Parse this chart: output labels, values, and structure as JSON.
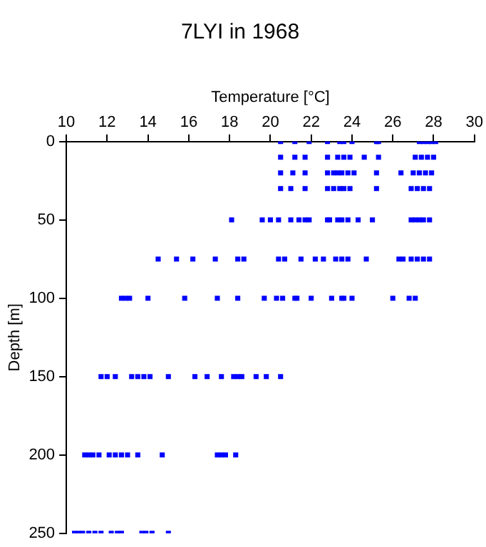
{
  "chart_data": {
    "type": "scatter",
    "title": "7LYI in 1968",
    "xlabel": "Temperature [°C]",
    "ylabel": "Depth [m]",
    "xlim": [
      10,
      30
    ],
    "xticks": [
      10,
      12,
      14,
      16,
      18,
      20,
      22,
      24,
      26,
      28,
      30
    ],
    "ylim": [
      250,
      0
    ],
    "yticks": [
      0,
      50,
      100,
      150,
      200,
      250
    ],
    "grid": false,
    "legend": false,
    "marker": "square",
    "series": [
      {
        "color": "#0000ff",
        "x": [
          20.5,
          21.2,
          21.9,
          22.8,
          23.4,
          23.6,
          24.0,
          25.2,
          25.3,
          27.3,
          27.5,
          27.7,
          27.9,
          28.1,
          20.5,
          21.2,
          21.7,
          22.8,
          23.3,
          23.6,
          23.9,
          24.6,
          25.3,
          27.1,
          27.4,
          27.7,
          28.0,
          20.5,
          21.1,
          21.7,
          22.8,
          23.1,
          23.3,
          23.5,
          23.8,
          24.1,
          25.2,
          26.4,
          27.0,
          27.3,
          27.6,
          27.9,
          20.5,
          21.0,
          21.7,
          22.8,
          23.1,
          23.4,
          23.6,
          23.9,
          25.2,
          26.9,
          27.2,
          27.5,
          27.8,
          18.1,
          19.6,
          20.0,
          20.4,
          21.0,
          21.4,
          21.7,
          21.9,
          22.8,
          22.9,
          23.3,
          23.5,
          23.8,
          24.3,
          25.0,
          26.9,
          27.1,
          27.3,
          27.5,
          27.8,
          14.5,
          15.4,
          16.2,
          17.3,
          18.4,
          18.7,
          20.4,
          20.7,
          21.5,
          22.2,
          22.6,
          23.2,
          23.5,
          23.8,
          24.7,
          26.3,
          26.5,
          26.9,
          27.2,
          27.5,
          27.8,
          12.7,
          12.9,
          13.1,
          14.0,
          15.8,
          17.4,
          18.4,
          19.7,
          20.3,
          20.6,
          21.2,
          21.3,
          22.0,
          23.0,
          23.5,
          23.6,
          24.0,
          26.0,
          26.8,
          27.1,
          11.7,
          12.0,
          12.4,
          13.2,
          13.5,
          13.8,
          14.1,
          15.0,
          16.3,
          16.9,
          17.6,
          18.2,
          18.4,
          18.6,
          19.3,
          19.8,
          20.5,
          10.9,
          11.1,
          11.3,
          11.6,
          12.1,
          12.4,
          12.7,
          13.0,
          13.5,
          14.7,
          17.4,
          17.6,
          17.8,
          18.3,
          10.4,
          10.6,
          10.8,
          11.1,
          11.4,
          11.7,
          12.2,
          12.5,
          12.7,
          13.7,
          13.9,
          14.2,
          15.0
        ],
        "values": [
          0,
          0,
          0,
          0,
          0,
          0,
          0,
          0,
          0,
          0,
          0,
          0,
          0,
          0,
          10,
          10,
          10,
          10,
          10,
          10,
          10,
          10,
          10,
          10,
          10,
          10,
          10,
          20,
          20,
          20,
          20,
          20,
          20,
          20,
          20,
          20,
          20,
          20,
          20,
          20,
          20,
          20,
          30,
          30,
          30,
          30,
          30,
          30,
          30,
          30,
          30,
          30,
          30,
          30,
          30,
          50,
          50,
          50,
          50,
          50,
          50,
          50,
          50,
          50,
          50,
          50,
          50,
          50,
          50,
          50,
          50,
          50,
          50,
          50,
          50,
          75,
          75,
          75,
          75,
          75,
          75,
          75,
          75,
          75,
          75,
          75,
          75,
          75,
          75,
          75,
          75,
          75,
          75,
          75,
          75,
          75,
          100,
          100,
          100,
          100,
          100,
          100,
          100,
          100,
          100,
          100,
          100,
          100,
          100,
          100,
          100,
          100,
          100,
          100,
          100,
          100,
          150,
          150,
          150,
          150,
          150,
          150,
          150,
          150,
          150,
          150,
          150,
          150,
          150,
          150,
          150,
          150,
          150,
          200,
          200,
          200,
          200,
          200,
          200,
          200,
          200,
          200,
          200,
          200,
          200,
          200,
          200,
          250,
          250,
          250,
          250,
          250,
          250,
          250,
          250,
          250,
          250,
          250,
          250,
          250
        ]
      }
    ]
  }
}
